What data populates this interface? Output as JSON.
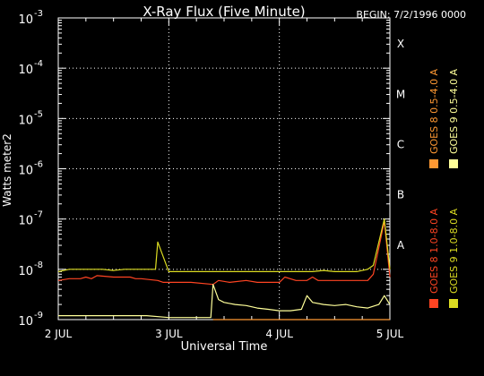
{
  "chart_data": {
    "type": "line",
    "title": "X-Ray Flux (Five Minute)",
    "begin_label": "BEGIN: 7/2/1996 0000",
    "xlabel": "Universal Time",
    "ylabel": "Watts meter2",
    "x_axis": {
      "unit": "days from 2 JUL 1996 0000 UT",
      "range": [
        0,
        3
      ],
      "ticks": [
        {
          "value": 0,
          "label": "2 JUL"
        },
        {
          "value": 1,
          "label": "3 JUL"
        },
        {
          "value": 2,
          "label": "4 JUL"
        },
        {
          "value": 3,
          "label": "5 JUL"
        }
      ]
    },
    "y_axis": {
      "scale": "log",
      "range": [
        1e-09,
        0.001
      ],
      "ticks": [
        {
          "value": 1e-09,
          "base": "10",
          "exp": "-9"
        },
        {
          "value": 1e-08,
          "base": "10",
          "exp": "-8"
        },
        {
          "value": 1e-07,
          "base": "10",
          "exp": "-7"
        },
        {
          "value": 1e-06,
          "base": "10",
          "exp": "-6"
        },
        {
          "value": 1e-05,
          "base": "10",
          "exp": "-5"
        },
        {
          "value": 0.0001,
          "base": "10",
          "exp": "-4"
        },
        {
          "value": 0.001,
          "base": "10",
          "exp": "-3"
        }
      ]
    },
    "flare_classes": [
      {
        "label": "X",
        "value": 0.0001
      },
      {
        "label": "M",
        "value": 1e-05
      },
      {
        "label": "C",
        "value": 1e-06
      },
      {
        "label": "B",
        "value": 1e-07
      },
      {
        "label": "A",
        "value": 1e-08
      }
    ],
    "grid": {
      "horizontal": true,
      "vertical": true,
      "style": "dotted"
    },
    "legend_placement": "right, vertical",
    "series": [
      {
        "name": "GOES 8 1.0-8.0 A",
        "color": "#ff4422",
        "x": [
          0,
          0.1,
          0.2,
          0.25,
          0.3,
          0.35,
          0.5,
          0.65,
          0.7,
          0.75,
          0.9,
          0.95,
          1.0,
          1.2,
          1.4,
          1.45,
          1.55,
          1.7,
          1.8,
          1.9,
          2.0,
          2.05,
          2.15,
          2.25,
          2.3,
          2.35,
          2.5,
          2.7,
          2.8,
          2.85,
          2.95,
          3.0
        ],
        "y": [
          6e-09,
          6.5e-09,
          6.5e-09,
          7e-09,
          6.5e-09,
          7.5e-09,
          7e-09,
          7e-09,
          6.5e-09,
          6.5e-09,
          6e-09,
          5.5e-09,
          5.5e-09,
          5.5e-09,
          5e-09,
          6e-09,
          5.5e-09,
          6e-09,
          5.5e-09,
          5.5e-09,
          5.5e-09,
          7e-09,
          6e-09,
          6e-09,
          7e-09,
          6e-09,
          6e-09,
          6e-09,
          6e-09,
          8e-09,
          9e-08,
          7e-09
        ]
      },
      {
        "name": "GOES 8 0.5-4.0 A",
        "color": "#ff9933",
        "x": [
          1.4,
          1.42,
          1.45,
          1.5,
          1.55,
          1.6,
          1.65,
          1.8,
          2.3,
          2.35,
          2.45,
          2.95,
          3.0
        ],
        "y": [
          1e-09,
          1e-09,
          1e-09,
          1e-09,
          1e-09,
          1e-09,
          1e-09,
          1e-09,
          1e-09,
          1e-09,
          1e-09,
          1e-09,
          1e-09
        ]
      },
      {
        "name": "GOES 9 1.0-8.0 A",
        "color": "#dddd22",
        "x": [
          0,
          0.1,
          0.2,
          0.3,
          0.4,
          0.5,
          0.6,
          0.7,
          0.8,
          0.88,
          0.9,
          1.0,
          1.1,
          1.2,
          1.3,
          1.4,
          1.5,
          1.6,
          1.7,
          1.8,
          1.9,
          2.0,
          2.1,
          2.2,
          2.3,
          2.4,
          2.5,
          2.6,
          2.7,
          2.8,
          2.85,
          2.95,
          3.0
        ],
        "y": [
          9e-09,
          1e-08,
          1e-08,
          1e-08,
          1e-08,
          9.5e-09,
          1e-08,
          1e-08,
          1e-08,
          1e-08,
          3.5e-08,
          9e-09,
          9e-09,
          9e-09,
          9e-09,
          9e-09,
          9e-09,
          9e-09,
          9e-09,
          9e-09,
          9e-09,
          9e-09,
          9e-09,
          9e-09,
          9e-09,
          9.5e-09,
          9e-09,
          9e-09,
          9e-09,
          1e-08,
          1.2e-08,
          1e-07,
          1e-08
        ]
      },
      {
        "name": "GOES 9 0.5-4.0 A",
        "color": "#ffff99",
        "x": [
          0,
          0.2,
          0.4,
          0.6,
          0.8,
          1.0,
          1.2,
          1.38,
          1.4,
          1.45,
          1.5,
          1.6,
          1.7,
          1.8,
          1.9,
          2.0,
          2.1,
          2.2,
          2.25,
          2.3,
          2.4,
          2.5,
          2.6,
          2.7,
          2.8,
          2.9,
          2.95,
          3.0
        ],
        "y": [
          1.2e-09,
          1.2e-09,
          1.2e-09,
          1.2e-09,
          1.2e-09,
          1.1e-09,
          1.1e-09,
          1.1e-09,
          5e-09,
          2.5e-09,
          2.2e-09,
          2e-09,
          1.9e-09,
          1.7e-09,
          1.6e-09,
          1.5e-09,
          1.5e-09,
          1.6e-09,
          3e-09,
          2.2e-09,
          2e-09,
          1.9e-09,
          2e-09,
          1.8e-09,
          1.7e-09,
          2e-09,
          3e-09,
          2e-09
        ]
      }
    ]
  }
}
